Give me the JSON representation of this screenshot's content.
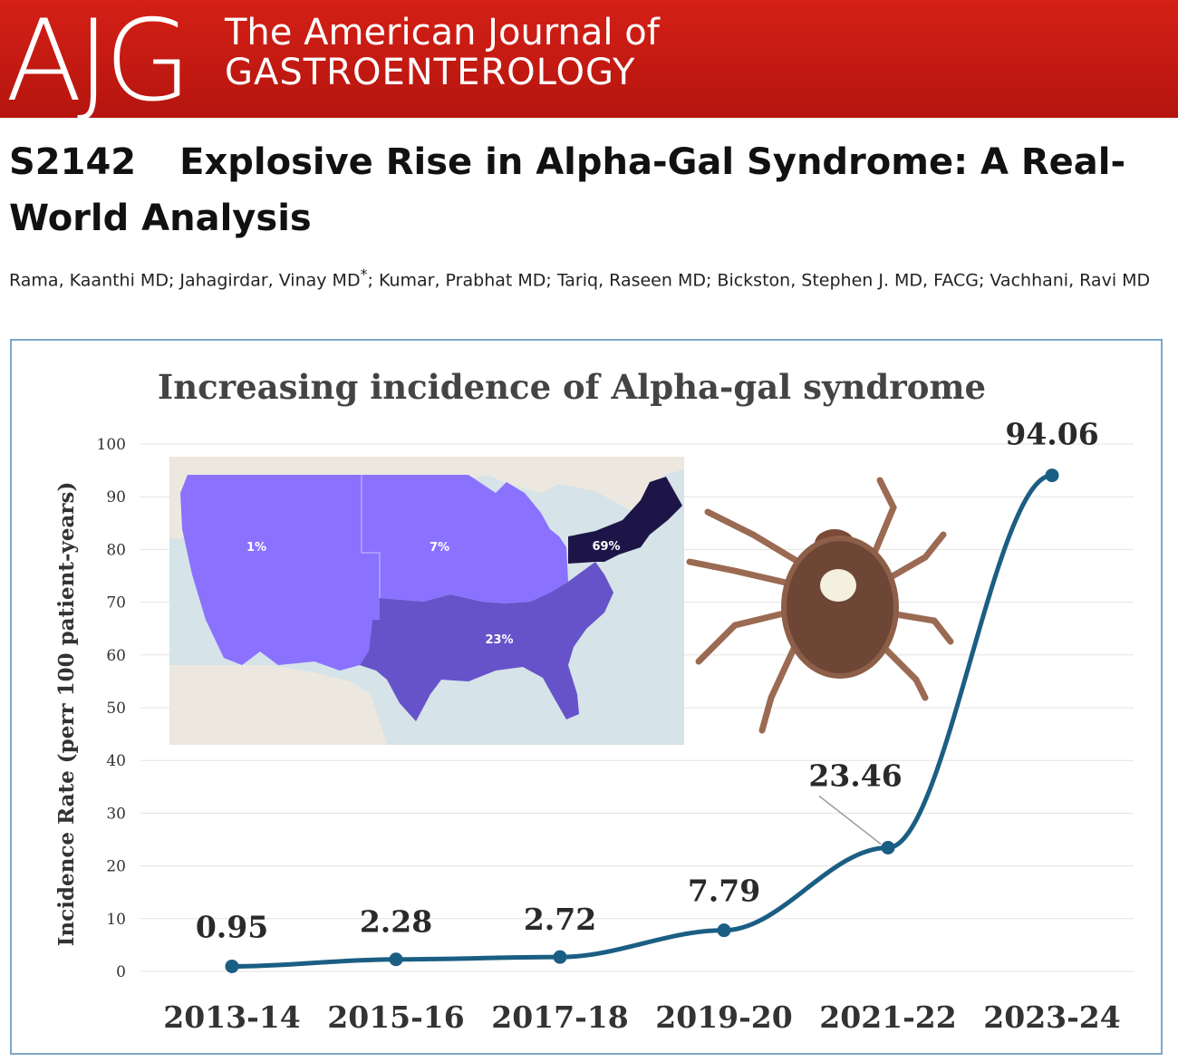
{
  "header": {
    "logo_text": "AJG",
    "journal_line1": "The American Journal of",
    "journal_line2": "GASTROENTEROLOGY",
    "brand_color": "#c4180f"
  },
  "article": {
    "code": "S2142",
    "title": "Explosive Rise in Alpha-Gal Syndrome: A Real-World Analysis",
    "authors_before_mark": "Rama, Kaanthi MD; Jahagirdar, Vinay MD",
    "corresponding_mark": "*",
    "authors_after_mark": "; Kumar, Prabhat MD; Tariq, Raseen MD; Bickston, Stephen J. MD, FACG; Vachhani, Ravi MD"
  },
  "inset_map": {
    "regions": [
      {
        "region": "West",
        "label": "1%",
        "color": "#8a72ff"
      },
      {
        "region": "Midwest",
        "label": "7%",
        "color": "#8a72ff"
      },
      {
        "region": "South",
        "label": "23%",
        "color": "#6653c9"
      },
      {
        "region": "Northeast",
        "label": "69%",
        "color": "#1d1547"
      }
    ]
  },
  "chart_data": {
    "type": "line",
    "title": "Increasing incidence of Alpha-gal syndrome",
    "xlabel": "",
    "ylabel": "Incidence Rate (perr 100 patient-years)",
    "categories": [
      "2013-14",
      "2015-16",
      "2017-18",
      "2019-20",
      "2021-22",
      "2023-24"
    ],
    "values": [
      0.95,
      2.28,
      2.72,
      7.79,
      23.46,
      94.06
    ],
    "data_labels": [
      "0.95",
      "2.28",
      "2.72",
      "7.79",
      "23.46",
      "94.06"
    ],
    "yticks": [
      "0",
      "10",
      "20",
      "30",
      "40",
      "50",
      "60",
      "70",
      "80",
      "90",
      "100"
    ],
    "ylim": [
      0,
      100
    ],
    "grid": true,
    "line_color": "#1b5e83"
  }
}
